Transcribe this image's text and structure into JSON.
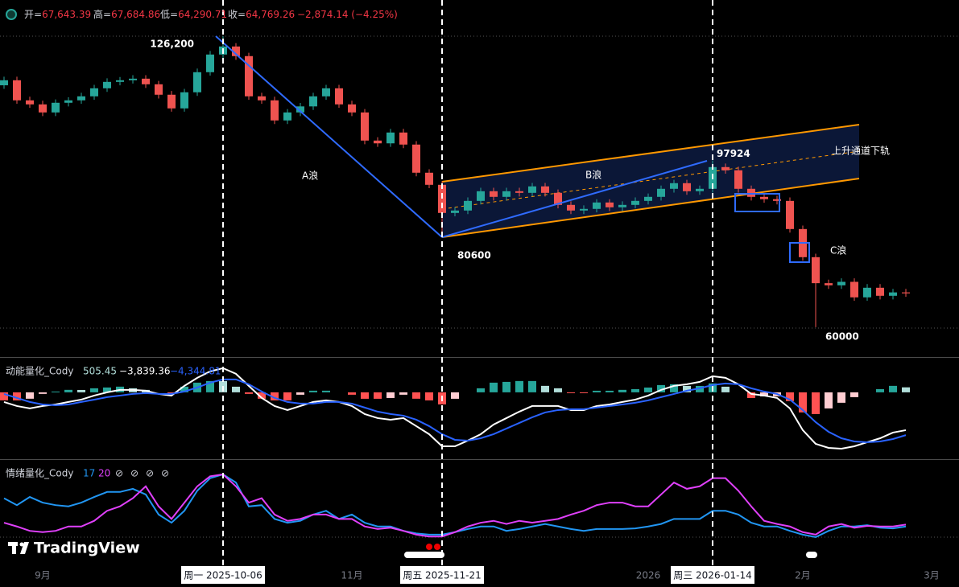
{
  "chart_data": [
    {
      "type": "candlestick",
      "header": [
        {
          "key": "开=",
          "value": "67,643.39"
        },
        {
          "key": "高=",
          "value": "67,684.86"
        },
        {
          "key": "低=",
          "value": "64,290.71"
        },
        {
          "key": "收=",
          "value": "64,769.26"
        },
        {
          "value": "−2,874.14 (−4.25%)"
        }
      ],
      "categories": [
        null,
        null,
        null,
        "9月",
        null,
        null,
        null,
        null,
        null,
        null,
        null,
        null,
        null,
        null,
        null,
        null,
        null,
        null,
        null,
        null,
        null,
        null,
        null,
        null,
        null,
        null,
        null,
        "11月",
        null,
        null,
        null,
        null,
        null,
        null,
        null,
        null,
        null,
        null,
        null,
        null,
        null,
        null,
        null,
        null,
        null,
        null,
        null,
        null,
        null,
        null,
        "2026",
        null,
        null,
        null,
        null,
        null,
        null,
        null,
        null,
        null,
        null,
        null,
        "2月",
        null,
        null,
        null,
        null,
        null,
        null,
        null,
        null,
        null,
        "3月",
        null,
        null
      ],
      "crosshair_labels": [
        null,
        null,
        null,
        null,
        null,
        null,
        null,
        null,
        null,
        null,
        null,
        null,
        null,
        null,
        null,
        null,
        null,
        "周一 2025-10-06",
        null,
        null,
        null,
        null,
        null,
        null,
        null,
        null,
        null,
        null,
        null,
        null,
        null,
        null,
        null,
        null,
        "周五 2025-11-21",
        null,
        null,
        null,
        null,
        null,
        null,
        null,
        null,
        null,
        null,
        null,
        null,
        null,
        null,
        null,
        null,
        null,
        null,
        null,
        null,
        "周三 2026-01-14",
        null,
        null,
        null,
        null,
        null,
        null,
        null,
        null,
        null,
        null,
        null,
        null,
        null,
        null,
        null,
        null,
        null,
        null,
        null
      ],
      "open": [
        115000,
        116150,
        111580,
        110660,
        108830,
        111030,
        111580,
        112490,
        114320,
        115780,
        116150,
        116510,
        115230,
        112860,
        109750,
        113410,
        117980,
        122000,
        123830,
        121640,
        112490,
        111580,
        107010,
        108830,
        110200,
        112490,
        114320,
        110660,
        108830,
        102430,
        101800,
        104260,
        101520,
        95120,
        92370,
        85970,
        86520,
        88710,
        90910,
        89630,
        90910,
        90540,
        92010,
        90540,
        87800,
        86520,
        86890,
        88350,
        87250,
        87800,
        88710,
        89630,
        91460,
        92740,
        90910,
        91460,
        96400,
        95670,
        91460,
        89630,
        89100,
        88710,
        82310,
        75910,
        70000,
        69510,
        70300,
        66770,
        68960,
        67130,
        67900,
        null,
        null,
        null,
        null
      ],
      "high": [
        116950,
        116950,
        112400,
        111500,
        111800,
        112300,
        113300,
        115100,
        116600,
        116900,
        117300,
        117300,
        116000,
        113700,
        114200,
        118800,
        122800,
        126200,
        124600,
        122400,
        113300,
        112400,
        109600,
        111000,
        113300,
        115100,
        115100,
        111500,
        109600,
        103200,
        105100,
        105100,
        102300,
        95900,
        93200,
        87300,
        89500,
        91700,
        91700,
        91700,
        91700,
        92800,
        92800,
        91300,
        88600,
        87700,
        89100,
        89100,
        88600,
        89500,
        90400,
        92200,
        93500,
        93500,
        92200,
        97924,
        97200,
        96500,
        92200,
        90400,
        89900,
        89500,
        83100,
        76700,
        70800,
        71100,
        71100,
        69800,
        69800,
        68700,
        68700,
        null,
        null,
        null,
        null
      ],
      "low": [
        114200,
        110800,
        109900,
        108000,
        108000,
        110200,
        110800,
        111700,
        113500,
        115000,
        115400,
        114400,
        112000,
        109000,
        109000,
        112600,
        117200,
        121200,
        120800,
        111700,
        110800,
        106200,
        106200,
        108000,
        109400,
        111700,
        109900,
        108000,
        101600,
        101000,
        101000,
        100700,
        94300,
        91600,
        80600,
        85200,
        85700,
        87900,
        88800,
        88800,
        89700,
        89700,
        89700,
        87000,
        85700,
        85700,
        86100,
        86400,
        86400,
        87000,
        87900,
        88800,
        90600,
        90100,
        90100,
        90600,
        94900,
        90600,
        88800,
        88300,
        87900,
        81500,
        75100,
        60000,
        68700,
        68700,
        66000,
        66000,
        66300,
        66300,
        66900,
        null,
        null,
        null,
        null
      ],
      "close": [
        116150,
        111580,
        110660,
        108830,
        111030,
        111580,
        112490,
        114320,
        115780,
        116150,
        116510,
        115230,
        112860,
        109750,
        113410,
        117980,
        122000,
        123830,
        121640,
        112490,
        111580,
        107010,
        108830,
        110200,
        112490,
        114320,
        110660,
        108830,
        102430,
        101800,
        104260,
        101520,
        95120,
        92370,
        85970,
        86520,
        88710,
        90910,
        89630,
        90910,
        90540,
        92010,
        90540,
        87800,
        86520,
        86890,
        88350,
        87250,
        87800,
        88710,
        89630,
        91460,
        92740,
        90910,
        91460,
        96400,
        95670,
        91460,
        89630,
        89100,
        88710,
        82310,
        75910,
        70000,
        69510,
        70300,
        66770,
        68960,
        67130,
        67900,
        67680,
        null,
        null,
        null,
        null
      ],
      "up_color": "#26a69a",
      "down_color": "#ef5350",
      "ylim": [
        53200,
        134400
      ],
      "annotations": [
        {
          "value": 126200,
          "label": "126,200"
        },
        {
          "value": 80600,
          "label": "80600"
        },
        {
          "value": 97924,
          "label": "97924"
        },
        {
          "value": 60000,
          "label": "60000"
        }
      ],
      "wave_labels": [
        "A浪",
        "B浪",
        "C浪",
        "上升通道下轨"
      ],
      "watermark": "TradingView"
    },
    {
      "type": "combo",
      "title": "动能量化_Cody",
      "ylim": [
        -6700,
        3500
      ],
      "series": [
        {
          "kind": "bar",
          "colors": [
            "#26a69a",
            "#b2dfdb",
            "#ff5252",
            "#ffcdd2"
          ],
          "value_label": "505.45",
          "values": [
            -815,
            -820,
            -650,
            -160,
            80,
            250,
            240,
            410,
            490,
            575,
            410,
            245,
            0,
            -165,
            575,
            980,
            1145,
            1140,
            570,
            -160,
            -650,
            -820,
            -820,
            -245,
            165,
            165,
            0,
            -245,
            -655,
            -655,
            -575,
            -245,
            -650,
            -820,
            -1225,
            -655,
            0,
            410,
            980,
            1060,
            1145,
            1145,
            655,
            410,
            -85,
            -85,
            160,
            160,
            250,
            320,
            485,
            735,
            820,
            650,
            650,
            900,
            570,
            0,
            -575,
            -410,
            -405,
            -890,
            -2040,
            -2205,
            -1635,
            -1060,
            -490,
            0,
            325,
            655,
            505.45
          ]
        },
        {
          "kind": "line",
          "color": "#ffffff",
          "value_label": "−3,839.36",
          "values": [
            -980,
            -1390,
            -1630,
            -1390,
            -1230,
            -980,
            -740,
            -330,
            0,
            245,
            245,
            165,
            -165,
            -330,
            655,
            1470,
            2125,
            2450,
            1880,
            655,
            -570,
            -1390,
            -1800,
            -1390,
            -980,
            -815,
            -980,
            -1390,
            -2205,
            -2615,
            -2780,
            -2615,
            -3430,
            -4250,
            -5475,
            -5475,
            -4900,
            -4250,
            -3270,
            -2615,
            -1960,
            -1390,
            -1390,
            -1390,
            -1800,
            -1800,
            -1390,
            -1230,
            -980,
            -740,
            -330,
            245,
            655,
            815,
            1060,
            1635,
            1470,
            815,
            -165,
            -330,
            -570,
            -1630,
            -3840,
            -5230,
            -5640,
            -5720,
            -5475,
            -5065,
            -4660,
            -4085,
            -3839.36
          ]
        },
        {
          "kind": "line",
          "color": "#2962ff",
          "value_label": "−4,344.81",
          "values": [
            -165,
            -570,
            -980,
            -1230,
            -1310,
            -1230,
            -980,
            -740,
            -490,
            -330,
            -165,
            -80,
            -165,
            -165,
            80,
            490,
            980,
            1310,
            1310,
            815,
            80,
            -570,
            -980,
            -1145,
            -1145,
            -980,
            -980,
            -1145,
            -1550,
            -1960,
            -2205,
            -2370,
            -2780,
            -3430,
            -4250,
            -4820,
            -4900,
            -4660,
            -4250,
            -3675,
            -3105,
            -2535,
            -2045,
            -1800,
            -1715,
            -1715,
            -1550,
            -1390,
            -1230,
            -1060,
            -815,
            -490,
            -165,
            165,
            410,
            735,
            900,
            815,
            410,
            80,
            -165,
            -740,
            -1800,
            -3025,
            -4005,
            -4660,
            -4985,
            -5065,
            -4985,
            -4740,
            -4344.81
          ]
        }
      ]
    },
    {
      "type": "line",
      "title": "情绪量化_Cody",
      "ylim": [
        -41,
        123
      ],
      "extras": [
        "⊘",
        "⊘",
        "⊘",
        "⊘"
      ],
      "series": [
        {
          "color": "#2196f3",
          "value_label": "17",
          "values": [
            62,
            51,
            64,
            55,
            51,
            49,
            55,
            64,
            72,
            72,
            77,
            68,
            36,
            23,
            42,
            74,
            94,
            100,
            87,
            49,
            51,
            29,
            23,
            26,
            36,
            42,
            29,
            36,
            23,
            17,
            17,
            10,
            6,
            4,
            4,
            8,
            13,
            17,
            17,
            10,
            13,
            17,
            21,
            17,
            13,
            10,
            13,
            13,
            13,
            14,
            17,
            21,
            29,
            29,
            29,
            42,
            42,
            36,
            23,
            17,
            17,
            10,
            4,
            0,
            10,
            17,
            17,
            19,
            15,
            14,
            17
          ]
        },
        {
          "color": "#e040fb",
          "value_label": "20",
          "values": [
            23,
            17,
            10,
            8,
            10,
            17,
            17,
            26,
            42,
            49,
            62,
            81,
            49,
            29,
            55,
            81,
            97,
            100,
            81,
            55,
            62,
            36,
            26,
            29,
            36,
            36,
            29,
            29,
            17,
            13,
            15,
            10,
            4,
            1,
            1,
            8,
            17,
            23,
            26,
            21,
            26,
            23,
            26,
            29,
            36,
            42,
            51,
            55,
            55,
            49,
            49,
            68,
            87,
            77,
            81,
            94,
            94,
            74,
            49,
            26,
            21,
            17,
            8,
            4,
            17,
            21,
            15,
            18,
            17,
            17,
            20
          ]
        }
      ]
    }
  ]
}
